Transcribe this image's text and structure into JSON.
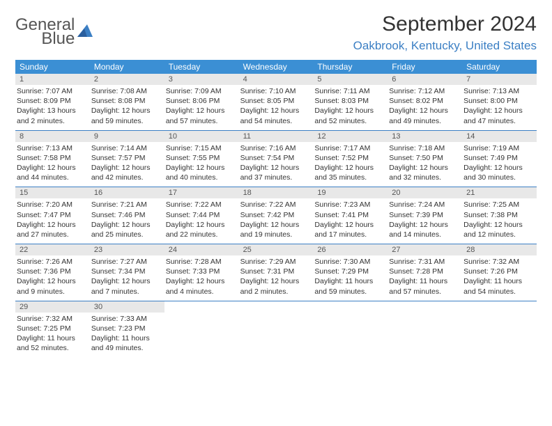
{
  "logo": {
    "line1": "General",
    "line2": "Blue"
  },
  "title": "September 2024",
  "location": "Oakbrook, Kentucky, United States",
  "colors": {
    "header_bg": "#3b8fd4",
    "accent": "#3b7fc4",
    "daynum_bg": "#e8e8e8",
    "text": "#333333",
    "page_bg": "#ffffff"
  },
  "day_names": [
    "Sunday",
    "Monday",
    "Tuesday",
    "Wednesday",
    "Thursday",
    "Friday",
    "Saturday"
  ],
  "weeks": [
    [
      {
        "n": "1",
        "sr": "Sunrise: 7:07 AM",
        "ss": "Sunset: 8:09 PM",
        "dl": "Daylight: 13 hours and 2 minutes."
      },
      {
        "n": "2",
        "sr": "Sunrise: 7:08 AM",
        "ss": "Sunset: 8:08 PM",
        "dl": "Daylight: 12 hours and 59 minutes."
      },
      {
        "n": "3",
        "sr": "Sunrise: 7:09 AM",
        "ss": "Sunset: 8:06 PM",
        "dl": "Daylight: 12 hours and 57 minutes."
      },
      {
        "n": "4",
        "sr": "Sunrise: 7:10 AM",
        "ss": "Sunset: 8:05 PM",
        "dl": "Daylight: 12 hours and 54 minutes."
      },
      {
        "n": "5",
        "sr": "Sunrise: 7:11 AM",
        "ss": "Sunset: 8:03 PM",
        "dl": "Daylight: 12 hours and 52 minutes."
      },
      {
        "n": "6",
        "sr": "Sunrise: 7:12 AM",
        "ss": "Sunset: 8:02 PM",
        "dl": "Daylight: 12 hours and 49 minutes."
      },
      {
        "n": "7",
        "sr": "Sunrise: 7:13 AM",
        "ss": "Sunset: 8:00 PM",
        "dl": "Daylight: 12 hours and 47 minutes."
      }
    ],
    [
      {
        "n": "8",
        "sr": "Sunrise: 7:13 AM",
        "ss": "Sunset: 7:58 PM",
        "dl": "Daylight: 12 hours and 44 minutes."
      },
      {
        "n": "9",
        "sr": "Sunrise: 7:14 AM",
        "ss": "Sunset: 7:57 PM",
        "dl": "Daylight: 12 hours and 42 minutes."
      },
      {
        "n": "10",
        "sr": "Sunrise: 7:15 AM",
        "ss": "Sunset: 7:55 PM",
        "dl": "Daylight: 12 hours and 40 minutes."
      },
      {
        "n": "11",
        "sr": "Sunrise: 7:16 AM",
        "ss": "Sunset: 7:54 PM",
        "dl": "Daylight: 12 hours and 37 minutes."
      },
      {
        "n": "12",
        "sr": "Sunrise: 7:17 AM",
        "ss": "Sunset: 7:52 PM",
        "dl": "Daylight: 12 hours and 35 minutes."
      },
      {
        "n": "13",
        "sr": "Sunrise: 7:18 AM",
        "ss": "Sunset: 7:50 PM",
        "dl": "Daylight: 12 hours and 32 minutes."
      },
      {
        "n": "14",
        "sr": "Sunrise: 7:19 AM",
        "ss": "Sunset: 7:49 PM",
        "dl": "Daylight: 12 hours and 30 minutes."
      }
    ],
    [
      {
        "n": "15",
        "sr": "Sunrise: 7:20 AM",
        "ss": "Sunset: 7:47 PM",
        "dl": "Daylight: 12 hours and 27 minutes."
      },
      {
        "n": "16",
        "sr": "Sunrise: 7:21 AM",
        "ss": "Sunset: 7:46 PM",
        "dl": "Daylight: 12 hours and 25 minutes."
      },
      {
        "n": "17",
        "sr": "Sunrise: 7:22 AM",
        "ss": "Sunset: 7:44 PM",
        "dl": "Daylight: 12 hours and 22 minutes."
      },
      {
        "n": "18",
        "sr": "Sunrise: 7:22 AM",
        "ss": "Sunset: 7:42 PM",
        "dl": "Daylight: 12 hours and 19 minutes."
      },
      {
        "n": "19",
        "sr": "Sunrise: 7:23 AM",
        "ss": "Sunset: 7:41 PM",
        "dl": "Daylight: 12 hours and 17 minutes."
      },
      {
        "n": "20",
        "sr": "Sunrise: 7:24 AM",
        "ss": "Sunset: 7:39 PM",
        "dl": "Daylight: 12 hours and 14 minutes."
      },
      {
        "n": "21",
        "sr": "Sunrise: 7:25 AM",
        "ss": "Sunset: 7:38 PM",
        "dl": "Daylight: 12 hours and 12 minutes."
      }
    ],
    [
      {
        "n": "22",
        "sr": "Sunrise: 7:26 AM",
        "ss": "Sunset: 7:36 PM",
        "dl": "Daylight: 12 hours and 9 minutes."
      },
      {
        "n": "23",
        "sr": "Sunrise: 7:27 AM",
        "ss": "Sunset: 7:34 PM",
        "dl": "Daylight: 12 hours and 7 minutes."
      },
      {
        "n": "24",
        "sr": "Sunrise: 7:28 AM",
        "ss": "Sunset: 7:33 PM",
        "dl": "Daylight: 12 hours and 4 minutes."
      },
      {
        "n": "25",
        "sr": "Sunrise: 7:29 AM",
        "ss": "Sunset: 7:31 PM",
        "dl": "Daylight: 12 hours and 2 minutes."
      },
      {
        "n": "26",
        "sr": "Sunrise: 7:30 AM",
        "ss": "Sunset: 7:29 PM",
        "dl": "Daylight: 11 hours and 59 minutes."
      },
      {
        "n": "27",
        "sr": "Sunrise: 7:31 AM",
        "ss": "Sunset: 7:28 PM",
        "dl": "Daylight: 11 hours and 57 minutes."
      },
      {
        "n": "28",
        "sr": "Sunrise: 7:32 AM",
        "ss": "Sunset: 7:26 PM",
        "dl": "Daylight: 11 hours and 54 minutes."
      }
    ],
    [
      {
        "n": "29",
        "sr": "Sunrise: 7:32 AM",
        "ss": "Sunset: 7:25 PM",
        "dl": "Daylight: 11 hours and 52 minutes."
      },
      {
        "n": "30",
        "sr": "Sunrise: 7:33 AM",
        "ss": "Sunset: 7:23 PM",
        "dl": "Daylight: 11 hours and 49 minutes."
      },
      null,
      null,
      null,
      null,
      null
    ]
  ]
}
